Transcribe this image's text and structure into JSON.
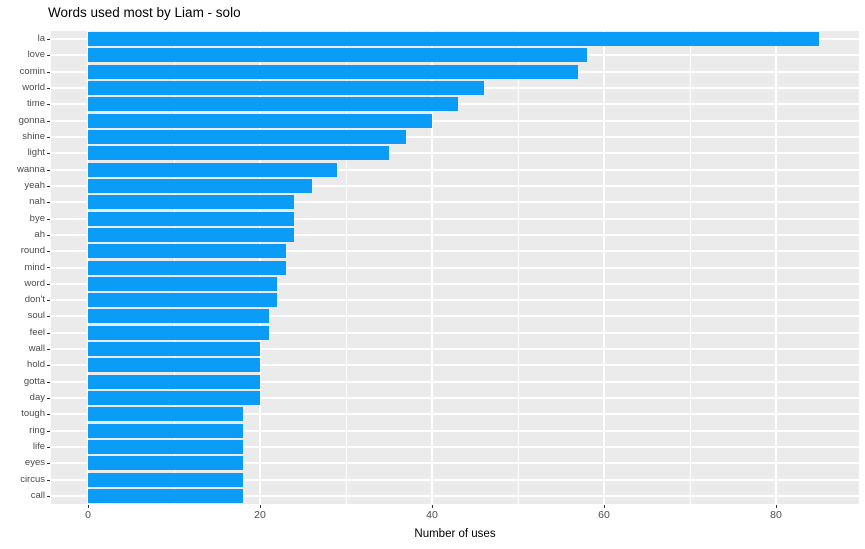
{
  "title": "Words used most by Liam - solo",
  "chart_data": {
    "type": "bar",
    "orientation": "horizontal",
    "title": "Words used most by Liam - solo",
    "xlabel": "Number of uses",
    "ylabel": "",
    "categories": [
      "la",
      "love",
      "comin",
      "world",
      "time",
      "gonna",
      "shine",
      "light",
      "wanna",
      "yeah",
      "nah",
      "bye",
      "ah",
      "round",
      "mind",
      "word",
      "don't",
      "soul",
      "feel",
      "wall",
      "hold",
      "gotta",
      "day",
      "tough",
      "ring",
      "life",
      "eyes",
      "circus",
      "call"
    ],
    "values": [
      85,
      58,
      57,
      46,
      43,
      40,
      37,
      35,
      29,
      26,
      24,
      24,
      24,
      23,
      23,
      22,
      22,
      21,
      21,
      20,
      20,
      20,
      20,
      18,
      18,
      18,
      18,
      18,
      18
    ],
    "xlim": [
      -4.25,
      89.25
    ],
    "xticks": [
      0,
      20,
      40,
      60,
      80
    ],
    "minor_xticks": [
      10,
      30,
      50,
      70
    ],
    "grid": true,
    "legend": false,
    "colors": {
      "bar": "#0A9CF7",
      "panel_bg": "#EBEBEB",
      "grid": "#FFFFFF",
      "tick_text": "#4D4D4D",
      "title_text": "#000000",
      "axis_title_text": "#000000",
      "tick_mark": "#333333"
    }
  }
}
